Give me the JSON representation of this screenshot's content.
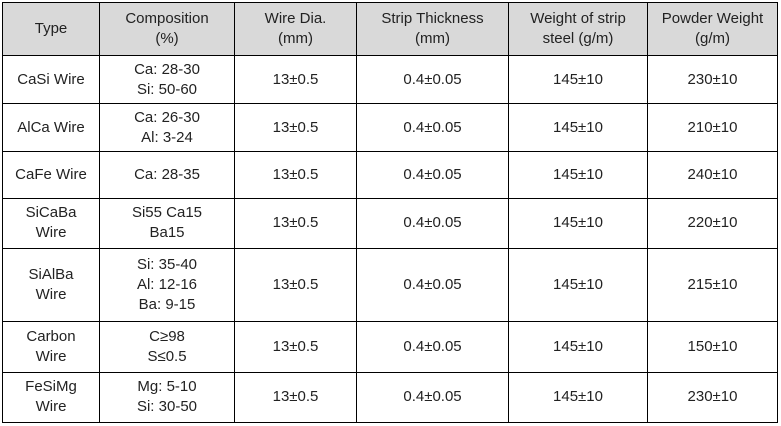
{
  "headers": [
    [
      "Type"
    ],
    [
      "Composition",
      "(%)"
    ],
    [
      "Wire Dia.",
      "(mm)"
    ],
    [
      "Strip Thickness",
      "(mm)"
    ],
    [
      "Weight of strip",
      "steel (g/m)"
    ],
    [
      "Powder Weight",
      "(g/m)"
    ]
  ],
  "rows": [
    {
      "type": [
        "CaSi Wire"
      ],
      "composition": [
        "Ca: 28-30",
        "Si: 50-60"
      ],
      "wire_dia": "13±0.5",
      "strip_thickness": "0.4±0.05",
      "strip_weight": "145±10",
      "powder_weight": "230±10"
    },
    {
      "type": [
        "AlCa Wire"
      ],
      "composition": [
        "Ca: 26-30",
        "Al: 3-24"
      ],
      "wire_dia": "13±0.5",
      "strip_thickness": "0.4±0.05",
      "strip_weight": "145±10",
      "powder_weight": "210±10"
    },
    {
      "type": [
        "CaFe Wire"
      ],
      "composition": [
        "Ca: 28-35"
      ],
      "wire_dia": "13±0.5",
      "strip_thickness": "0.4±0.05",
      "strip_weight": "145±10",
      "powder_weight": "240±10"
    },
    {
      "type": [
        "SiCaBa",
        "Wire"
      ],
      "composition": [
        "Si55 Ca15",
        "Ba15"
      ],
      "wire_dia": "13±0.5",
      "strip_thickness": "0.4±0.05",
      "strip_weight": "145±10",
      "powder_weight": "220±10"
    },
    {
      "type": [
        "SiAlBa",
        "Wire"
      ],
      "composition": [
        "Si: 35-40",
        "Al: 12-16",
        "Ba: 9-15"
      ],
      "wire_dia": "13±0.5",
      "strip_thickness": "0.4±0.05",
      "strip_weight": "145±10",
      "powder_weight": "215±10"
    },
    {
      "type": [
        "Carbon",
        "Wire"
      ],
      "composition": [
        "C≥98",
        "S≤0.5"
      ],
      "wire_dia": "13±0.5",
      "strip_thickness": "0.4±0.05",
      "strip_weight": "145±10",
      "powder_weight": "150±10"
    },
    {
      "type": [
        "FeSiMg",
        "Wire"
      ],
      "composition": [
        "Mg: 5-10",
        "Si: 30-50"
      ],
      "wire_dia": "13±0.5",
      "strip_thickness": "0.4±0.05",
      "strip_weight": "145±10",
      "powder_weight": "230±10"
    }
  ]
}
